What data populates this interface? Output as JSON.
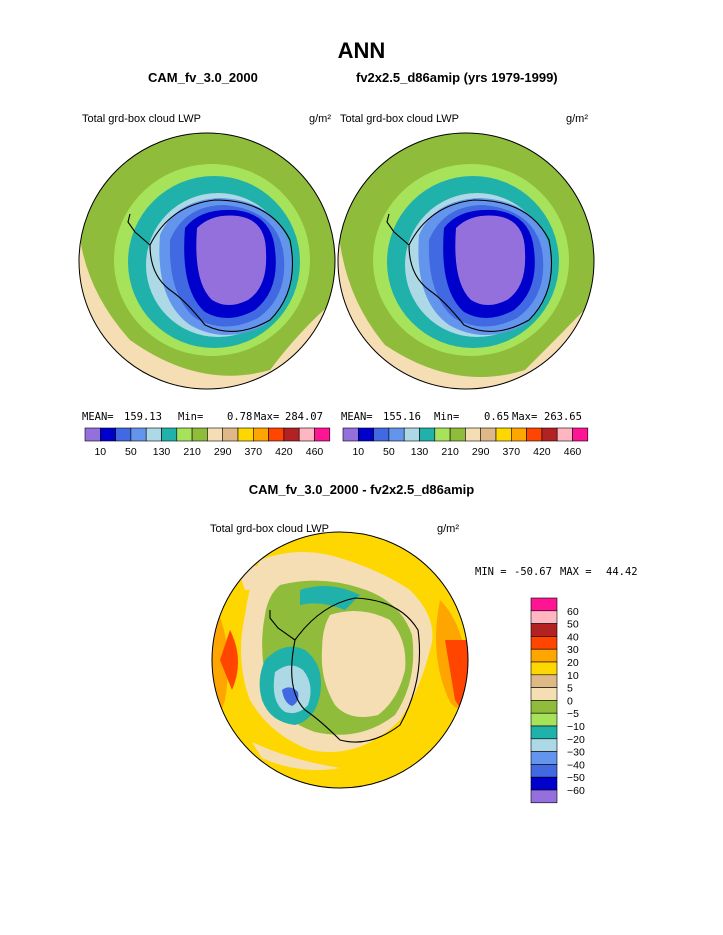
{
  "page": {
    "title": "ANN",
    "left_case": "CAM_fv_3.0_2000",
    "right_case": "fv2x2.5_d86amip (yrs 1979-1999)",
    "diff_title": "CAM_fv_3.0_2000 - fv2x2.5_d86amip"
  },
  "chart_data": [
    {
      "type": "heatmap",
      "projection": "south-polar-stereographic",
      "title": "Total grd-box cloud LWP",
      "units": "g/m²",
      "case": "CAM_fv_3.0_2000",
      "stats": {
        "mean": "159.13",
        "min": "0.78",
        "max": "284.07"
      },
      "colorbar_levels": [
        10,
        50,
        130,
        210,
        290,
        370,
        420,
        460
      ]
    },
    {
      "type": "heatmap",
      "projection": "south-polar-stereographic",
      "title": "Total grd-box cloud LWP",
      "units": "g/m²",
      "case": "fv2x2.5_d86amip (yrs 1979-1999)",
      "stats": {
        "mean": "155.16",
        "min": "0.65",
        "max": "263.65"
      },
      "colorbar_levels": [
        10,
        50,
        130,
        210,
        290,
        370,
        420,
        460
      ]
    },
    {
      "type": "heatmap",
      "projection": "south-polar-stereographic",
      "title": "Total grd-box cloud LWP",
      "units": "g/m²",
      "case": "CAM_fv_3.0_2000 - fv2x2.5_d86amip",
      "stats": {
        "min": "-50.67",
        "max": "44.42"
      },
      "colorbar_levels": [
        60,
        50,
        40,
        30,
        20,
        10,
        5,
        0,
        -5,
        -10,
        -20,
        -30,
        -40,
        -50,
        -60
      ]
    }
  ],
  "labels": {
    "mean": "MEAN=",
    "min": "Min=",
    "max": "Max=",
    "diff_min": "MIN =",
    "diff_max": "MAX ="
  },
  "colors": {
    "abs_scale": [
      "#9370db",
      "#0000cd",
      "#4169e1",
      "#6495ed",
      "#add8e6",
      "#20b2aa",
      "#a6e25a",
      "#8fbc3a",
      "#f5deb3",
      "#deb887",
      "#ffd700",
      "#ffa500",
      "#ff4500",
      "#b22222",
      "#ffb6c1",
      "#ff1493"
    ],
    "diff_scale": [
      "#ff1493",
      "#ffb6c1",
      "#b22222",
      "#ff4500",
      "#ffa500",
      "#ffd700",
      "#deb887",
      "#f5deb3",
      "#8fbc3a",
      "#a6e25a",
      "#20b2aa",
      "#add8e6",
      "#6495ed",
      "#4169e1",
      "#0000cd",
      "#9370db"
    ]
  }
}
